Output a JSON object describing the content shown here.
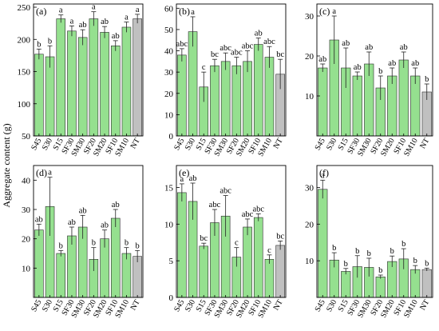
{
  "figure": {
    "ylabel": "Aggregate content (g)"
  },
  "colors": {
    "bar": "#95e08f",
    "bar_control": "#c0c0c0",
    "edge": "#2b2b2b"
  },
  "chart_data": [
    {
      "type": "bar",
      "label": "(a)",
      "categories": [
        "S45",
        "S30",
        "S15",
        "SF30",
        "SM30",
        "SF20",
        "SM20",
        "SF10",
        "SM10",
        "NT"
      ],
      "values": [
        177,
        173,
        232,
        213,
        203,
        232,
        211,
        190,
        219,
        232
      ],
      "errors": [
        8,
        17,
        6,
        8,
        12,
        11,
        9,
        8,
        8,
        7
      ],
      "letters": [
        "b",
        "b",
        "a",
        "a",
        "ab",
        "a",
        "ab",
        "ab",
        "a",
        "a"
      ],
      "ylim": [
        50,
        255
      ],
      "yticks": [
        50,
        100,
        150,
        200,
        250
      ]
    },
    {
      "type": "bar",
      "label": "(b)",
      "categories": [
        "S45",
        "S30",
        "S15",
        "SF30",
        "SM30",
        "SF20",
        "SM20",
        "SF10",
        "SM10",
        "NT"
      ],
      "values": [
        38,
        49,
        23,
        33,
        35,
        33,
        35,
        43,
        37,
        29
      ],
      "errors": [
        3,
        7,
        7,
        3,
        4,
        4,
        5,
        3,
        5,
        7
      ],
      "letters": [
        "abc",
        "a",
        "c",
        "bc",
        "abc",
        "abc",
        "abc",
        "ab",
        "abc",
        "bc"
      ],
      "ylim": [
        0,
        62
      ],
      "yticks": [
        0,
        10,
        20,
        30,
        40,
        50,
        60
      ]
    },
    {
      "type": "bar",
      "label": "(c)",
      "categories": [
        "S45",
        "S30",
        "S15",
        "SF30",
        "SM30",
        "SF20",
        "SM20",
        "SF10",
        "SM10",
        "NT"
      ],
      "values": [
        17,
        24,
        17,
        15,
        18,
        12,
        15,
        19,
        15,
        11
      ],
      "errors": [
        1,
        6,
        5,
        1,
        3,
        3,
        2,
        2,
        2,
        2
      ],
      "letters": [
        "ab",
        "a",
        "ab",
        "ab",
        "ab",
        "b",
        "ab",
        "ab",
        "ab",
        "b"
      ],
      "ylim": [
        0,
        33
      ],
      "yticks": [
        10,
        20,
        30
      ]
    },
    {
      "type": "bar",
      "label": "(d)",
      "categories": [
        "S45",
        "S30",
        "S15",
        "SF30",
        "SM30",
        "SF20",
        "SM20",
        "SF10",
        "SM10",
        "NT"
      ],
      "values": [
        23,
        31,
        15,
        21,
        24,
        13,
        20,
        27,
        15,
        14
      ],
      "errors": [
        2,
        10,
        1,
        3,
        4,
        4,
        3,
        3,
        2,
        2
      ],
      "letters": [
        "ab",
        "a",
        "b",
        "ab",
        "ab",
        "b",
        "ab",
        "ab",
        "b",
        "b"
      ],
      "ylim": [
        0,
        45
      ],
      "yticks": [
        10,
        20,
        30,
        40
      ]
    },
    {
      "type": "bar",
      "label": "(e)",
      "categories": [
        "S45",
        "S30",
        "S15",
        "SF30",
        "SM30",
        "SF20",
        "SM20",
        "SF10",
        "SM10",
        "NT"
      ],
      "values": [
        14.3,
        13.1,
        7.0,
        10.2,
        11.1,
        5.5,
        9.6,
        10.9,
        5.2,
        7.1
      ],
      "errors": [
        1.2,
        2.5,
        0.4,
        1.8,
        2.8,
        1.3,
        1.1,
        0.5,
        0.6,
        0.6
      ],
      "letters": [
        "a",
        "ab",
        "bc",
        "abc",
        "abc",
        "c",
        "abc",
        "abc",
        "c",
        "bc"
      ],
      "ylim": [
        0,
        18
      ],
      "yticks": [
        0,
        5,
        10,
        15
      ]
    },
    {
      "type": "bar",
      "label": "(f)",
      "categories": [
        "S45",
        "S30",
        "S15",
        "SF30",
        "SM30",
        "SF20",
        "SM20",
        "SF10",
        "SM10",
        "NT"
      ],
      "values": [
        29.5,
        10.2,
        7.1,
        8.4,
        8.2,
        5.6,
        9.8,
        10.5,
        7.6,
        7.6
      ],
      "errors": [
        2.5,
        2.0,
        0.8,
        3.0,
        2.5,
        0.5,
        1.5,
        2.8,
        1.1,
        0.4
      ],
      "letters": [
        "a",
        "b",
        "b",
        "b",
        "b",
        "b",
        "b",
        "b",
        "b",
        "b"
      ],
      "ylim": [
        0,
        36
      ],
      "yticks": [
        10,
        20,
        30
      ]
    }
  ]
}
